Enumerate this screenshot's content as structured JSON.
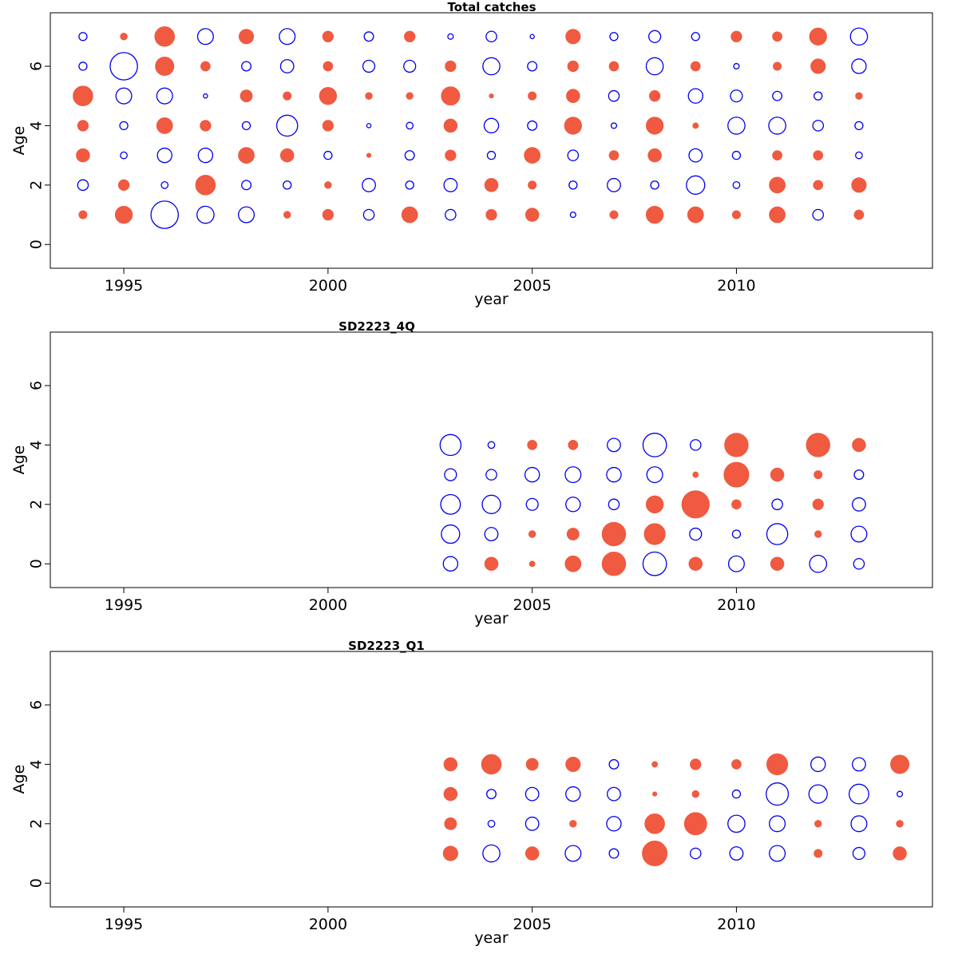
{
  "colors": {
    "positive": "#ef5a40",
    "negative": "#0000ee",
    "frame": "#000000"
  },
  "chart_data": [
    {
      "type": "scatter",
      "subtype": "bubble-residuals",
      "title": "Total catches",
      "xlabel": "year",
      "ylabel": "Age",
      "xlim": [
        1993.2,
        2014.8
      ],
      "ylim": [
        -0.8,
        7.8
      ],
      "x_ticks": [
        1995,
        2000,
        2005,
        2010
      ],
      "y_ticks": [
        0,
        2,
        4,
        6
      ],
      "years": [
        1994,
        1995,
        1996,
        1997,
        1998,
        1999,
        2000,
        2001,
        2002,
        2003,
        2004,
        2005,
        2006,
        2007,
        2008,
        2009,
        2010,
        2011,
        2012,
        2013
      ],
      "ages": [
        1,
        2,
        3,
        4,
        5,
        6,
        7
      ],
      "rows": [
        {
          "age": 1,
          "values": [
            0.25,
            0.6,
            -1.0,
            -0.6,
            -0.55,
            0.2,
            0.35,
            -0.35,
            0.55,
            -0.35,
            0.35,
            0.45,
            -0.15,
            0.25,
            0.6,
            0.55,
            0.25,
            0.55,
            -0.35,
            0.3
          ]
        },
        {
          "age": 2,
          "values": [
            -0.35,
            0.35,
            -0.2,
            0.7,
            -0.3,
            -0.25,
            0.2,
            -0.45,
            -0.25,
            -0.45,
            0.45,
            0.25,
            -0.25,
            -0.45,
            -0.25,
            -0.65,
            -0.2,
            0.55,
            0.3,
            0.5
          ]
        },
        {
          "age": 3,
          "values": [
            0.45,
            -0.2,
            -0.5,
            -0.5,
            0.55,
            0.45,
            -0.25,
            0.1,
            -0.3,
            0.35,
            -0.25,
            0.55,
            -0.35,
            0.3,
            0.45,
            -0.45,
            -0.25,
            0.3,
            0.3,
            -0.2
          ]
        },
        {
          "age": 4,
          "values": [
            0.35,
            -0.25,
            0.55,
            0.35,
            -0.25,
            -0.75,
            0.35,
            -0.1,
            -0.2,
            0.45,
            -0.5,
            -0.3,
            0.6,
            -0.15,
            0.6,
            0.15,
            -0.6,
            -0.6,
            -0.35,
            -0.25
          ]
        },
        {
          "age": 5,
          "values": [
            0.7,
            -0.55,
            -0.55,
            -0.1,
            0.4,
            0.25,
            0.6,
            0.2,
            0.2,
            0.65,
            0.1,
            0.25,
            0.45,
            -0.35,
            0.35,
            -0.5,
            -0.4,
            -0.3,
            -0.25,
            0.2
          ]
        },
        {
          "age": 6,
          "values": [
            -0.25,
            -1.0,
            0.65,
            0.3,
            -0.3,
            -0.45,
            0.3,
            -0.4,
            -0.4,
            0.35,
            -0.6,
            -0.3,
            0.35,
            0.3,
            -0.6,
            0.3,
            -0.15,
            0.25,
            0.5,
            -0.5
          ]
        },
        {
          "age": 7,
          "values": [
            -0.25,
            0.2,
            0.7,
            -0.55,
            0.5,
            -0.55,
            0.35,
            -0.3,
            0.35,
            -0.15,
            -0.35,
            -0.1,
            0.5,
            -0.25,
            -0.4,
            -0.25,
            0.35,
            0.3,
            0.6,
            -0.6
          ]
        }
      ]
    },
    {
      "type": "scatter",
      "subtype": "bubble-residuals",
      "title": "SD2223_4Q",
      "xlabel": "year",
      "ylabel": "Age",
      "xlim": [
        1993.2,
        2014.8
      ],
      "ylim": [
        -0.8,
        7.8
      ],
      "x_ticks": [
        1995,
        2000,
        2005,
        2010
      ],
      "y_ticks": [
        0,
        2,
        4,
        6
      ],
      "years": [
        2003,
        2004,
        2005,
        2006,
        2007,
        2008,
        2009,
        2010,
        2011,
        2012,
        2013
      ],
      "ages": [
        0,
        1,
        2,
        3,
        4
      ],
      "rows": [
        {
          "age": 0,
          "values": [
            -0.5,
            0.45,
            0.15,
            0.55,
            0.85,
            -0.85,
            0.45,
            -0.55,
            0.45,
            -0.6,
            -0.35
          ]
        },
        {
          "age": 1,
          "values": [
            -0.65,
            -0.45,
            0.2,
            0.4,
            0.85,
            0.75,
            -0.4,
            -0.25,
            -0.75,
            0.2,
            -0.55
          ]
        },
        {
          "age": 2,
          "values": [
            -0.7,
            -0.65,
            -0.4,
            -0.5,
            -0.35,
            0.6,
            1.0,
            0.3,
            -0.35,
            0.35,
            -0.45
          ]
        },
        {
          "age": 3,
          "values": [
            -0.4,
            -0.35,
            -0.5,
            -0.55,
            -0.5,
            -0.55,
            0.15,
            0.9,
            0.45,
            0.25,
            -0.3
          ]
        },
        {
          "age": 4,
          "values": [
            -0.75,
            -0.2,
            0.3,
            0.3,
            -0.45,
            -0.85,
            -0.35,
            0.85,
            null,
            0.85,
            0.45
          ]
        }
      ]
    },
    {
      "type": "scatter",
      "subtype": "bubble-residuals",
      "title": "SD2223_Q1",
      "xlabel": "year",
      "ylabel": "Age",
      "xlim": [
        1993.2,
        2014.8
      ],
      "ylim": [
        -0.8,
        7.8
      ],
      "x_ticks": [
        1995,
        2000,
        2005,
        2010
      ],
      "y_ticks": [
        0,
        2,
        4,
        6
      ],
      "years": [
        2003,
        2004,
        2005,
        2006,
        2007,
        2008,
        2009,
        2010,
        2011,
        2012,
        2013,
        2014
      ],
      "ages": [
        1,
        2,
        3,
        4
      ],
      "rows": [
        {
          "age": 1,
          "values": [
            0.5,
            -0.6,
            0.45,
            -0.55,
            -0.3,
            0.9,
            -0.35,
            -0.45,
            -0.55,
            0.25,
            -0.4,
            0.45
          ]
        },
        {
          "age": 2,
          "values": [
            0.4,
            -0.2,
            -0.45,
            0.2,
            -0.5,
            0.7,
            0.8,
            -0.6,
            -0.55,
            0.2,
            -0.55,
            0.2
          ]
        },
        {
          "age": 3,
          "values": [
            0.45,
            -0.3,
            -0.45,
            -0.5,
            -0.45,
            0.1,
            0.2,
            -0.25,
            -0.8,
            -0.65,
            -0.7,
            -0.15
          ]
        },
        {
          "age": 4,
          "values": [
            0.45,
            0.7,
            0.4,
            0.5,
            -0.3,
            0.15,
            0.35,
            0.3,
            0.75,
            -0.5,
            -0.45,
            0.65
          ]
        }
      ]
    }
  ]
}
